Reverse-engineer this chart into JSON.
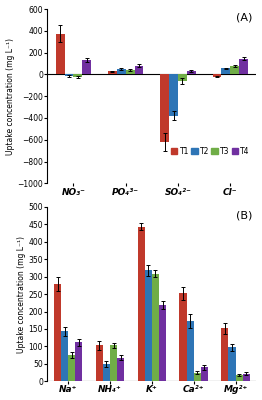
{
  "panel_A": {
    "title": "(A)",
    "categories": [
      "NO₃⁻",
      "PO₄³⁻",
      "SO₄²⁻",
      "Cl⁻"
    ],
    "T1": [
      375,
      30,
      -620,
      -20
    ],
    "T2": [
      -15,
      50,
      -380,
      55
    ],
    "T3": [
      -25,
      40,
      -60,
      80
    ],
    "T4": [
      130,
      80,
      30,
      145
    ],
    "T1_err": [
      75,
      5,
      85,
      8
    ],
    "T2_err": [
      10,
      8,
      40,
      8
    ],
    "T3_err": [
      8,
      8,
      25,
      8
    ],
    "T4_err": [
      18,
      12,
      12,
      15
    ],
    "ylabel": "Uptake concentration (mg L⁻¹)",
    "ylim": [
      -1000,
      600
    ],
    "yticks": [
      -1000,
      -800,
      -600,
      -400,
      -200,
      0,
      200,
      400,
      600
    ]
  },
  "panel_B": {
    "title": "(B)",
    "categories": [
      "Na⁺",
      "NH₄⁺",
      "K⁺",
      "Ca²⁺",
      "Mg²⁺"
    ],
    "T1": [
      280,
      103,
      443,
      252,
      152
    ],
    "T2": [
      143,
      50,
      318,
      172,
      97
    ],
    "T3": [
      75,
      103,
      308,
      25,
      18
    ],
    "T4": [
      112,
      68,
      218,
      40,
      22
    ],
    "T1_err": [
      20,
      12,
      10,
      18,
      15
    ],
    "T2_err": [
      12,
      8,
      15,
      20,
      10
    ],
    "T3_err": [
      8,
      8,
      10,
      5,
      4
    ],
    "T4_err": [
      10,
      8,
      12,
      8,
      4
    ],
    "ylabel": "Uptake concentration (mg L⁻¹)",
    "ylim": [
      0,
      500
    ],
    "yticks": [
      0,
      50,
      100,
      150,
      200,
      250,
      300,
      350,
      400,
      450,
      500
    ]
  },
  "colors": {
    "T1": "#c0392b",
    "T2": "#2e75b6",
    "T3": "#70ad47",
    "T4": "#7030a0"
  },
  "bar_width": 0.17,
  "legend_labels": [
    "T1",
    "T2",
    "T3",
    "T4"
  ]
}
